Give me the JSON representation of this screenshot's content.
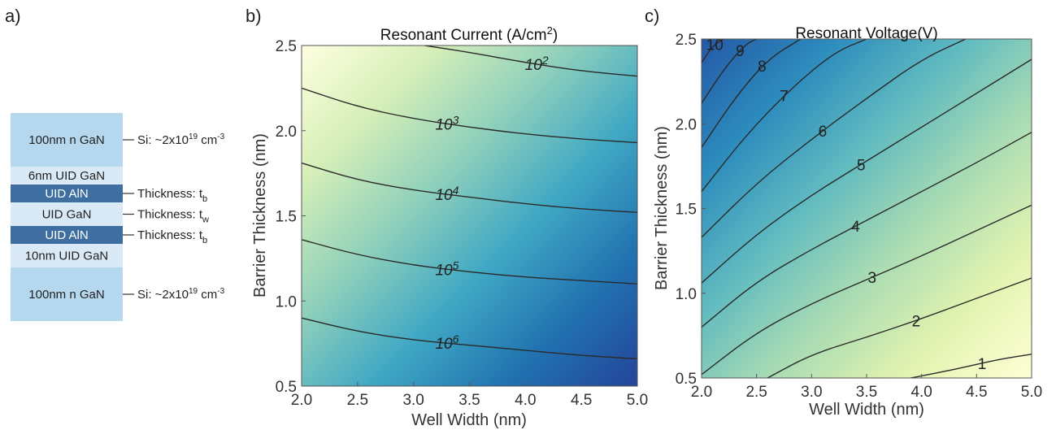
{
  "panel_a": {
    "label": "a)",
    "layers": [
      {
        "text": "100nm n GaN",
        "fill": "#b5d8ee",
        "text_color": "#222222"
      },
      {
        "text": "6nm UID GaN",
        "fill": "#d9e9f6",
        "text_color": "#222222"
      },
      {
        "text": "UID AlN",
        "fill": "#3e6fa0",
        "text_color": "#ffffff"
      },
      {
        "text": "UID GaN",
        "fill": "#d9e9f6",
        "text_color": "#222222"
      },
      {
        "text": "UID AlN",
        "fill": "#3e6fa0",
        "text_color": "#ffffff"
      },
      {
        "text": "10nm UID GaN",
        "fill": "#d9e9f6",
        "text_color": "#222222"
      },
      {
        "text": "100nm n GaN",
        "fill": "#b5d8ee",
        "text_color": "#222222"
      }
    ],
    "annotations": [
      {
        "layer": 0,
        "text": "Si: ~2x10",
        "sup": "19",
        "tail": " cm",
        "tail_sup": "-3"
      },
      {
        "layer": 2,
        "text": "Thickness: t",
        "sub": "b"
      },
      {
        "layer": 3,
        "text": "Thickness: t",
        "sub": "w"
      },
      {
        "layer": 4,
        "text": "Thickness: t",
        "sub": "b"
      },
      {
        "layer": 6,
        "text": "Si: ~2x10",
        "sup": "19",
        "tail": " cm",
        "tail_sup": "-3"
      }
    ]
  },
  "chart_data": [
    {
      "panel_label": "b)",
      "type": "contour",
      "title": "Resonant Current (A/cm",
      "title_sup": "2",
      "title_end": ")",
      "xlabel": "Well Width (nm)",
      "ylabel": "Barrier Thickness (nm)",
      "xlim": [
        2.0,
        5.0
      ],
      "ylim": [
        0.5,
        2.5
      ],
      "xticks": [
        "2.0",
        "2.5",
        "3.0",
        "3.5",
        "4.0",
        "4.5",
        "5.0"
      ],
      "yticks": [
        "0.5",
        "1.0",
        "1.5",
        "2.0",
        "2.5"
      ],
      "colormap": [
        "#ffffe0",
        "#d6efb8",
        "#8fd0bb",
        "#40a8c4",
        "#2172b0",
        "#24449a"
      ],
      "contours": [
        {
          "label": "10",
          "sup": "2",
          "x": [
            3.1,
            3.5,
            4.0,
            4.5,
            5.0
          ],
          "y": [
            2.5,
            2.46,
            2.4,
            2.35,
            2.32
          ],
          "label_x": 4.1
        },
        {
          "label": "10",
          "sup": "3",
          "x": [
            2.0,
            2.5,
            3.0,
            3.5,
            4.0,
            4.5,
            5.0
          ],
          "y": [
            2.25,
            2.14,
            2.07,
            2.02,
            1.98,
            1.95,
            1.93
          ],
          "label_x": 3.3
        },
        {
          "label": "10",
          "sup": "4",
          "x": [
            2.0,
            2.5,
            3.0,
            3.5,
            4.0,
            4.5,
            5.0
          ],
          "y": [
            1.81,
            1.71,
            1.65,
            1.61,
            1.57,
            1.54,
            1.52
          ],
          "label_x": 3.3
        },
        {
          "label": "10",
          "sup": "5",
          "x": [
            2.0,
            2.5,
            3.0,
            3.5,
            4.0,
            4.5,
            5.0
          ],
          "y": [
            1.36,
            1.27,
            1.21,
            1.17,
            1.14,
            1.12,
            1.1
          ],
          "label_x": 3.3
        },
        {
          "label": "10",
          "sup": "6",
          "x": [
            2.0,
            2.5,
            3.0,
            3.5,
            4.0,
            4.5,
            5.0
          ],
          "y": [
            0.9,
            0.82,
            0.77,
            0.74,
            0.71,
            0.68,
            0.66
          ],
          "label_x": 3.3
        }
      ]
    },
    {
      "panel_label": "c)",
      "type": "contour",
      "title": "Resonant Voltage(V)",
      "xlabel": "Well Width (nm)",
      "ylabel": "Barrier Thickness (nm)",
      "xlim": [
        2.0,
        5.0
      ],
      "ylim": [
        0.5,
        2.5
      ],
      "xticks": [
        "2.0",
        "2.5",
        "3.0",
        "3.5",
        "4.0",
        "4.5",
        "5.0"
      ],
      "yticks": [
        "0.5",
        "1.0",
        "1.5",
        "2.0",
        "2.5"
      ],
      "colormap": [
        "#ffffd6",
        "#e2f3b0",
        "#a8dbb3",
        "#5fbac0",
        "#2c8bbd",
        "#2458a6"
      ],
      "contours": [
        {
          "label": "1",
          "x": [
            3.9,
            4.3,
            4.7,
            5.0
          ],
          "y": [
            0.5,
            0.55,
            0.61,
            0.64
          ],
          "label_x": 4.55
        },
        {
          "label": "2",
          "x": [
            2.6,
            3.0,
            3.5,
            4.0,
            4.5,
            5.0
          ],
          "y": [
            0.5,
            0.64,
            0.74,
            0.85,
            0.97,
            1.09
          ],
          "label_x": 3.95
        },
        {
          "label": "3",
          "x": [
            2.0,
            2.5,
            3.0,
            3.5,
            4.0,
            4.5,
            5.0
          ],
          "y": [
            0.52,
            0.77,
            0.94,
            1.08,
            1.22,
            1.37,
            1.52
          ],
          "label_x": 3.55
        },
        {
          "label": "4",
          "x": [
            2.0,
            2.5,
            3.0,
            3.5,
            4.0,
            4.5,
            5.0
          ],
          "y": [
            0.8,
            1.07,
            1.26,
            1.43,
            1.6,
            1.77,
            1.95
          ],
          "label_x": 3.4
        },
        {
          "label": "5",
          "x": [
            2.0,
            2.5,
            3.0,
            3.5,
            4.0,
            4.5,
            5.0
          ],
          "y": [
            1.06,
            1.35,
            1.58,
            1.78,
            1.98,
            2.18,
            2.38
          ],
          "label_x": 3.45
        },
        {
          "label": "6",
          "x": [
            2.0,
            2.5,
            3.0,
            3.5,
            4.0,
            4.4
          ],
          "y": [
            1.33,
            1.65,
            1.91,
            2.15,
            2.38,
            2.5
          ],
          "label_x": 3.1
        },
        {
          "label": "7",
          "x": [
            2.0,
            2.4,
            2.8,
            3.2,
            3.5
          ],
          "y": [
            1.6,
            1.93,
            2.2,
            2.42,
            2.5
          ],
          "label_x": 2.75
        },
        {
          "label": "8",
          "x": [
            2.0,
            2.3,
            2.6,
            2.9
          ],
          "y": [
            1.86,
            2.15,
            2.38,
            2.5
          ],
          "label_x": 2.55
        },
        {
          "label": "9",
          "x": [
            2.0,
            2.2,
            2.4,
            2.5
          ],
          "y": [
            2.12,
            2.32,
            2.47,
            2.5
          ],
          "label_x": 2.35
        },
        {
          "label": "10",
          "x": [
            2.0,
            2.1,
            2.2
          ],
          "y": [
            2.36,
            2.46,
            2.5
          ],
          "label_x": 2.12
        }
      ]
    }
  ]
}
